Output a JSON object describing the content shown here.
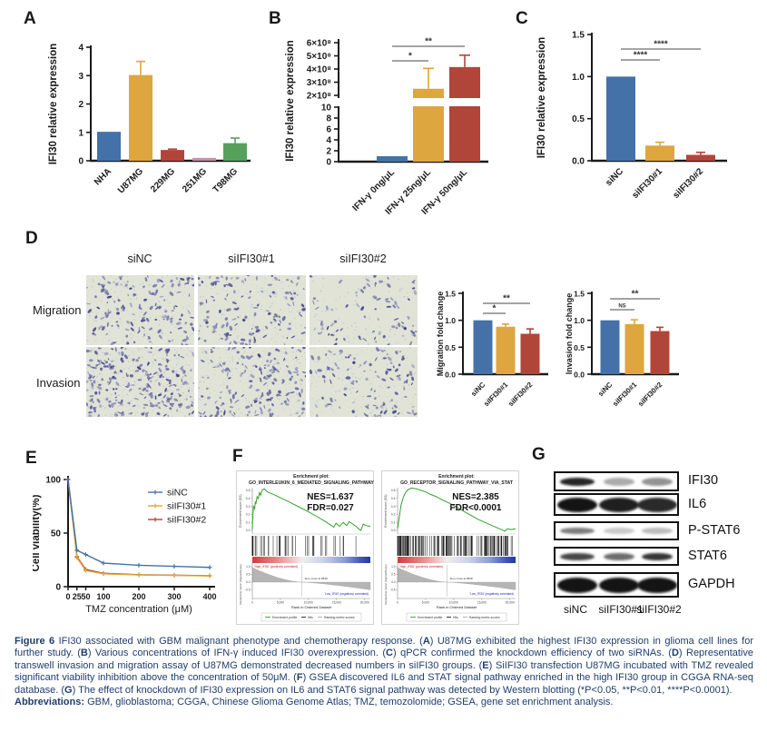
{
  "figure": {
    "panels": {
      "a": "A",
      "b": "B",
      "c": "C",
      "d": "D",
      "e": "E",
      "f": "F",
      "g": "G"
    }
  },
  "colors": {
    "blue": "#4472a8",
    "gold": "#dda63e",
    "red": "#b1453a",
    "pink": "#c590ab",
    "green": "#57a05c",
    "caption_text": "#1f3d6d",
    "gsea_green": "#33a02c",
    "axis": "#1a1a1a"
  },
  "chart_data": [
    {
      "panel": "A",
      "type": "bar",
      "categories": [
        "NHA",
        "U87MG",
        "229MG",
        "251MG",
        "T98MG"
      ],
      "values": [
        1.02,
        3.02,
        0.38,
        0.1,
        0.62
      ],
      "errors": [
        0,
        0.48,
        0.03,
        0,
        0.18
      ],
      "bar_colors": [
        "#4472a8",
        "#dda63e",
        "#b1453a",
        "#c590ab",
        "#57a05c"
      ],
      "ylabel": "IFI30 relative expression",
      "ylim": [
        0,
        4
      ],
      "yticks": [
        "0",
        "1",
        "2",
        "3",
        "4"
      ],
      "ytick_vals": [
        0,
        1,
        2,
        3,
        4
      ],
      "significance": []
    },
    {
      "panel": "B",
      "type": "bar-broken-axis",
      "categories": [
        "IFN-γ 0ng/μL",
        "IFN-γ 25ng/μL",
        "IFN-γ 50ng/μL"
      ],
      "values": [
        1.0,
        250000000,
        415000000
      ],
      "errors": [
        0,
        155000000,
        90000000
      ],
      "bar_colors": [
        "#4472a8",
        "#dda63e",
        "#b1453a"
      ],
      "ylabel": "IFI30 relative expression",
      "lower_ylim": [
        0,
        10
      ],
      "lower_yticks": [
        "0",
        "2",
        "4",
        "6",
        "8",
        "10"
      ],
      "upper_ylim": [
        200000000,
        600000000
      ],
      "upper_yticks": [
        "2×10⁸",
        "3×10⁸",
        "4×10⁸",
        "5×10⁸",
        "6×10⁸"
      ],
      "significance": [
        {
          "from": 0,
          "to": 1,
          "label": "*"
        },
        {
          "from": 0,
          "to": 2,
          "label": "**"
        }
      ]
    },
    {
      "panel": "C",
      "type": "bar",
      "categories": [
        "siNC",
        "siIFI30#1",
        "siIFI30#2"
      ],
      "values": [
        1.0,
        0.18,
        0.07
      ],
      "errors": [
        0,
        0.04,
        0.03
      ],
      "bar_colors": [
        "#4472a8",
        "#dda63e",
        "#b1453a"
      ],
      "ylabel": "IFI30 relative expression",
      "ylim": [
        0,
        1.5
      ],
      "yticks": [
        "0.0",
        "0.5",
        "1.0",
        "1.5"
      ],
      "ytick_vals": [
        0,
        0.5,
        1,
        1.5
      ],
      "significance": [
        {
          "from": 0,
          "to": 1,
          "label": "****"
        },
        {
          "from": 0,
          "to": 2,
          "label": "****"
        }
      ]
    },
    {
      "panel": "D-migration",
      "type": "bar",
      "categories": [
        "siNC",
        "siIFI30#1",
        "siIFI30#2"
      ],
      "values": [
        1.0,
        0.88,
        0.75
      ],
      "errors": [
        0,
        0.05,
        0.09
      ],
      "bar_colors": [
        "#4472a8",
        "#dda63e",
        "#b1453a"
      ],
      "ylabel": "Migration fold change",
      "ylim": [
        0,
        1.5
      ],
      "yticks": [
        "0.0",
        "0.5",
        "1.0",
        "1.5"
      ],
      "ytick_vals": [
        0,
        0.5,
        1,
        1.5
      ],
      "significance": [
        {
          "from": 0,
          "to": 1,
          "label": "*"
        },
        {
          "from": 0,
          "to": 2,
          "label": "**"
        }
      ]
    },
    {
      "panel": "D-invasion",
      "type": "bar",
      "categories": [
        "siNC",
        "siIFI30#1",
        "siIFI30#2"
      ],
      "values": [
        1.0,
        0.93,
        0.8
      ],
      "errors": [
        0,
        0.08,
        0.07
      ],
      "bar_colors": [
        "#4472a8",
        "#dda63e",
        "#b1453a"
      ],
      "ylabel": "Invasion fold change",
      "ylim": [
        0,
        1.5
      ],
      "yticks": [
        "0.0",
        "0.5",
        "1.0",
        "1.5"
      ],
      "ytick_vals": [
        0,
        0.5,
        1,
        1.5
      ],
      "significance": [
        {
          "from": 0,
          "to": 1,
          "label": "NS"
        },
        {
          "from": 0,
          "to": 2,
          "label": "**"
        }
      ]
    },
    {
      "panel": "E",
      "type": "line",
      "x": [
        0,
        25,
        50,
        100,
        200,
        300,
        400
      ],
      "xticks": [
        "0",
        "25",
        "50",
        "100",
        "200",
        "300",
        "400"
      ],
      "series": [
        {
          "name": "siNC",
          "color": "#4472a8",
          "values": [
            100,
            34,
            30,
            22,
            20,
            19,
            18
          ]
        },
        {
          "name": "siIFI30#1",
          "color": "#dda63e",
          "values": [
            100,
            27,
            15,
            12,
            11,
            10.5,
            10
          ]
        },
        {
          "name": "siIFI30#2",
          "color": "#b1453a",
          "values": [
            100,
            28,
            16,
            12.5,
            11.2,
            10.7,
            10.2
          ]
        }
      ],
      "xlabel": "TMZ concentration (μM)",
      "ylabel": "Cell viability(%)",
      "ylim": [
        0,
        100
      ],
      "yticks": [
        "0",
        "50",
        "100"
      ],
      "ytick_vals": [
        0,
        50,
        100
      ]
    },
    {
      "panel": "F-left",
      "type": "gsea",
      "title_line1": "Enrichment plot:",
      "title_line2": "GO_INTERLEUKIN_6_MEDIATED_SIGNALING_PATHWAY",
      "nes": "NES=1.637",
      "fdr": "FDR=0.027",
      "es_yticks": [
        "0.5",
        "0.4",
        "0.3",
        "0.2",
        "0.1",
        "0.0"
      ],
      "es_curve": [
        [
          0,
          0.01
        ],
        [
          0.005,
          0.18
        ],
        [
          0.01,
          0.3
        ],
        [
          0.02,
          0.27
        ],
        [
          0.025,
          0.36
        ],
        [
          0.03,
          0.33
        ],
        [
          0.04,
          0.42
        ],
        [
          0.05,
          0.4
        ],
        [
          0.06,
          0.47
        ],
        [
          0.07,
          0.44
        ],
        [
          0.08,
          0.5
        ],
        [
          0.1,
          0.52
        ],
        [
          0.13,
          0.48
        ],
        [
          0.18,
          0.45
        ],
        [
          0.25,
          0.4
        ],
        [
          0.32,
          0.35
        ],
        [
          0.4,
          0.29
        ],
        [
          0.48,
          0.23
        ],
        [
          0.55,
          0.17
        ],
        [
          0.62,
          0.11
        ],
        [
          0.66,
          0.07
        ],
        [
          0.69,
          0.04
        ],
        [
          0.71,
          0.09
        ],
        [
          0.74,
          0.05
        ],
        [
          0.77,
          0.1
        ],
        [
          0.8,
          0.06
        ],
        [
          0.82,
          0.11
        ],
        [
          0.85,
          0.08
        ],
        [
          0.88,
          0.05
        ],
        [
          0.9,
          0.02
        ],
        [
          0.92,
          0.0
        ],
        [
          0.94,
          0.08
        ],
        [
          0.96,
          0.06
        ],
        [
          1,
          0.05
        ]
      ],
      "hits_count": 46,
      "hits_seed": 3,
      "hits_bias": 2.0,
      "pos_label": "'High_IFI30' (positively correlated)",
      "neg_label": "'Low_IFI30' (negatively correlated)",
      "zero_cross": "Zero cross at 8848",
      "ylabel_top": "Enrichment score (ES)",
      "ylabel_bottom": "Ranked list metric (Signal2Noise)",
      "xlabel": "Rank in Ordered Dataset",
      "x_tick_labels": [
        "0",
        "5,000",
        "10,000",
        "15,000",
        "20,000"
      ],
      "legend": [
        "Enrichment profile",
        "Hits",
        "Ranking metric scores"
      ]
    },
    {
      "panel": "F-right",
      "type": "gsea",
      "title_line1": "Enrichment plot:",
      "title_line2": "GO_RECEPTOR_SIGNALING_PATHWAY_VIA_STAT",
      "nes": "NES=2.385",
      "fdr": "FDR<0.0001",
      "es_yticks": [
        "0.5",
        "0.4",
        "0.3",
        "0.2",
        "0.1",
        "0.0"
      ],
      "es_curve": [
        [
          0,
          0.02
        ],
        [
          0.01,
          0.12
        ],
        [
          0.02,
          0.22
        ],
        [
          0.03,
          0.32
        ],
        [
          0.05,
          0.42
        ],
        [
          0.07,
          0.48
        ],
        [
          0.09,
          0.51
        ],
        [
          0.12,
          0.53
        ],
        [
          0.16,
          0.52
        ],
        [
          0.2,
          0.5
        ],
        [
          0.24,
          0.48
        ],
        [
          0.28,
          0.45
        ],
        [
          0.33,
          0.42
        ],
        [
          0.38,
          0.38
        ],
        [
          0.44,
          0.34
        ],
        [
          0.5,
          0.29
        ],
        [
          0.56,
          0.24
        ],
        [
          0.62,
          0.19
        ],
        [
          0.68,
          0.14
        ],
        [
          0.74,
          0.1
        ],
        [
          0.8,
          0.06
        ],
        [
          0.85,
          0.03
        ],
        [
          0.88,
          0.01
        ],
        [
          0.91,
          -0.01
        ],
        [
          0.93,
          0.02
        ],
        [
          0.96,
          0.01
        ],
        [
          1,
          0.02
        ]
      ],
      "hits_count": 150,
      "hits_seed": 9,
      "hits_bias": 1.5,
      "pos_label": "'High_IFI30' (positively correlated)",
      "neg_label": "'Low_IFI30' (negatively correlated)",
      "zero_cross": "Zero cross at 8848",
      "ylabel_top": "Enrichment score (ES)",
      "ylabel_bottom": "Ranked list metric (Signal2Noise)",
      "xlabel": "Rank in Ordered Dataset",
      "x_tick_labels": [
        "0",
        "5,000",
        "10,000",
        "15,000",
        "20,000"
      ],
      "legend": [
        "Enrichment profile",
        "Hits",
        "Ranking metric scores"
      ]
    }
  ],
  "transwell": {
    "col_labels": [
      "siNC",
      "siIFI30#1",
      "siIFI30#2"
    ],
    "row_labels": [
      "Migration",
      "Invasion"
    ],
    "background": "#e0e3d6",
    "cell_palette": [
      "#3e3e84",
      "#5656a0",
      "#7878b4",
      "#9e9ec8"
    ],
    "densities": [
      [
        150,
        130,
        85
      ],
      [
        240,
        170,
        115
      ]
    ]
  },
  "western_blot": {
    "rows": [
      {
        "label": "IFI30",
        "bands": [
          0.92,
          0.35,
          0.45
        ]
      },
      {
        "label": "IL6",
        "bands": [
          1,
          0.95,
          0.9
        ]
      },
      {
        "label": "P-STAT6",
        "bands": [
          0.55,
          0.22,
          0.28
        ]
      },
      {
        "label": "STAT6",
        "bands": [
          0.78,
          0.62,
          0.85
        ]
      },
      {
        "label": "GAPDH",
        "bands": [
          1,
          1,
          1
        ]
      }
    ],
    "lanes": [
      "siNC",
      "siIFI30#1",
      "siIFI30#2"
    ]
  },
  "caption": {
    "main_segments": [
      {
        "b": 1,
        "t": "Figure 6 "
      },
      {
        "b": 0,
        "t": "IFI30 associated with GBM malignant phenotype and chemotherapy response. ("
      },
      {
        "b": 1,
        "t": "A"
      },
      {
        "b": 0,
        "t": ") U87MG exhibited the highest IFI30 expression in glioma cell lines for further study. ("
      },
      {
        "b": 1,
        "t": "B"
      },
      {
        "b": 0,
        "t": ") Various concentrations of IFN-γ induced IFI30 overexpression. ("
      },
      {
        "b": 1,
        "t": "C"
      },
      {
        "b": 0,
        "t": ") qPCR confirmed the knockdown efficiency of two siRNAs. ("
      },
      {
        "b": 1,
        "t": "D"
      },
      {
        "b": 0,
        "t": ") Representative transwell invasion and migration assay of U87MG demonstrated decreased numbers in siIFI30 groups. ("
      },
      {
        "b": 1,
        "t": "E"
      },
      {
        "b": 0,
        "t": ") SiIFI30 transfection U87MG incubated with TMZ revealed significant viability inhibition above the concentration of 50μM. ("
      },
      {
        "b": 1,
        "t": "F"
      },
      {
        "b": 0,
        "t": ") GSEA discovered IL6 and STAT signal pathway enriched in the high IFI30 group in CGGA RNA-seq database. ("
      },
      {
        "b": 1,
        "t": "G"
      },
      {
        "b": 0,
        "t": ") The effect of knockdown of IFI30 expression on IL6 and STAT6 signal pathway was detected by Western blotting (*P<0.05, **P<0.01, ****P<0.0001)."
      }
    ],
    "abbrev_segments": [
      {
        "b": 1,
        "t": "Abbreviations: "
      },
      {
        "b": 0,
        "t": "GBM, glioblastoma; CGGA, Chinese Glioma Genome Atlas; TMZ, temozolomide; GSEA, gene set enrichment analysis."
      }
    ]
  }
}
